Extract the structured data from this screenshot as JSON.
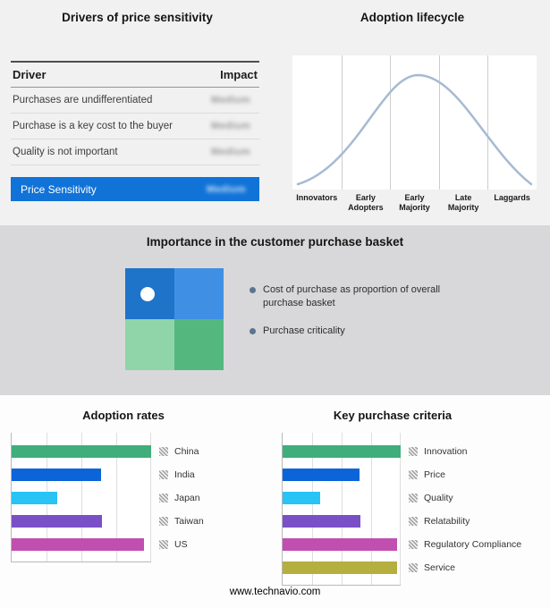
{
  "footer": {
    "text": "www.technavio.com"
  },
  "chart_data": [
    {
      "type": "table",
      "title": "Drivers of price sensitivity",
      "columns": [
        "Driver",
        "Impact"
      ],
      "rows": [
        [
          "Purchases are undifferentiated",
          "Medium"
        ],
        [
          "Purchase is a key cost to the buyer",
          "Medium"
        ],
        [
          "Quality is not important",
          "Medium"
        ],
        [
          "Price Sensitivity",
          "Medium"
        ]
      ],
      "highlight_row": "Price Sensitivity",
      "highlight_row_color": "#1173d8",
      "note": "Impact values are shown blurred/redacted in the image"
    },
    {
      "type": "line",
      "title": "Adoption lifecycle",
      "categories": [
        "Innovators",
        "Early Adopters",
        "Early Majority",
        "Late Majority",
        "Laggards"
      ],
      "description": "Bell-shaped adoption curve across five adopter segments separated by vertical gridlines",
      "line_color": "#a6bad2"
    },
    {
      "type": "heatmap",
      "title": "Importance in the customer purchase basket",
      "description": "2x2 quadrant matrix with a white position marker in the upper-left quadrant",
      "marker_quadrant": "top-left",
      "cell_colors": [
        [
          "#1e74c8",
          "#3f90e4"
        ],
        [
          "#90d4aa",
          "#54b87e"
        ]
      ],
      "bullet_color": "#5b7590",
      "legend": [
        "Cost of purchase as proportion of overall purchase basket",
        "Purchase criticality"
      ]
    },
    {
      "type": "bar",
      "title": "Adoption rates",
      "orientation": "horizontal",
      "categories": [
        "China",
        "India",
        "Japan",
        "Taiwan",
        "US"
      ],
      "values": [
        100,
        64,
        33,
        65,
        95
      ],
      "colors": [
        "#3fae7b",
        "#0b64d8",
        "#29c3f6",
        "#7a50c7",
        "#c04fb0"
      ],
      "xlim": [
        0,
        100
      ],
      "value_unit": "percent of axis width, estimated from unlabeled gridlines",
      "grid": true,
      "legend_position": "right",
      "legend_marker": "hatched-square"
    },
    {
      "type": "bar",
      "title": "Key purchase criteria",
      "orientation": "horizontal",
      "categories": [
        "Innovation",
        "Price",
        "Quality",
        "Relatability",
        "Regulatory Compliance",
        "Service"
      ],
      "values": [
        100,
        65,
        32,
        66,
        97,
        97
      ],
      "colors": [
        "#3fae7b",
        "#0b64d8",
        "#29c3f6",
        "#7a50c7",
        "#c04fb0",
        "#b4af3e"
      ],
      "xlim": [
        0,
        100
      ],
      "value_unit": "percent of axis width, estimated from unlabeled gridlines",
      "grid": true,
      "legend_position": "right",
      "legend_marker": "hatched-square"
    }
  ]
}
